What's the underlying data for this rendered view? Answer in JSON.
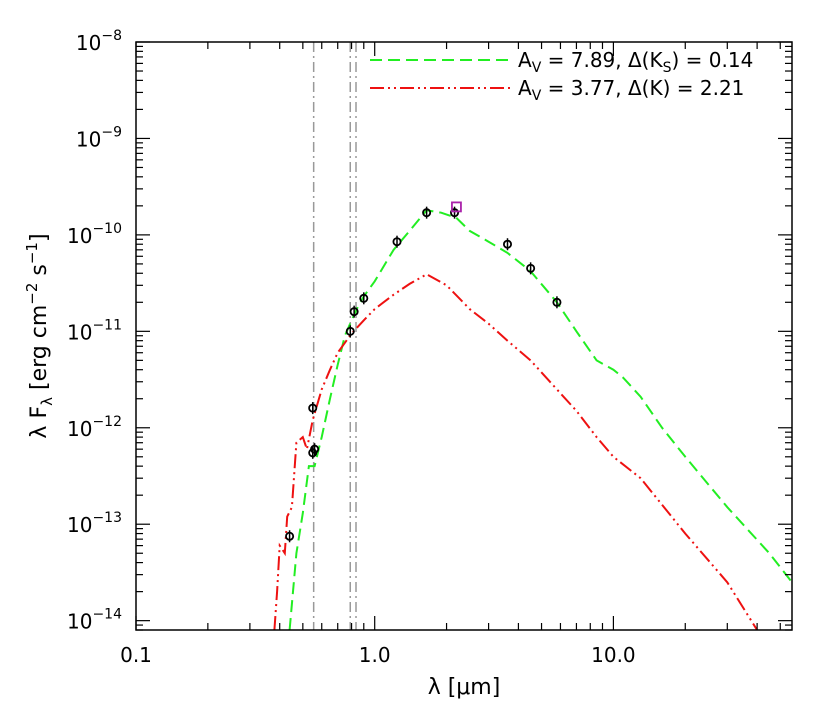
{
  "chart_data": {
    "type": "line",
    "title": "",
    "xlabel": "λ [μm]",
    "ylabel": "λ F_λ [erg cm^-2 s^-1]",
    "x_scale": "log",
    "y_scale": "log",
    "xlim": [
      0.1,
      56
    ],
    "ylim": [
      8e-15,
      1e-08
    ],
    "x_ticks": [
      {
        "value": 0.1,
        "label": "0.1"
      },
      {
        "value": 1.0,
        "label": "1.0"
      },
      {
        "value": 10.0,
        "label": "10.0"
      }
    ],
    "y_ticks": [
      {
        "value": 1e-08,
        "label": "10^-8"
      },
      {
        "value": 1e-09,
        "label": "10^-9"
      },
      {
        "value": 1e-10,
        "label": "10^-10"
      },
      {
        "value": 1e-11,
        "label": "10^-11"
      },
      {
        "value": 1e-12,
        "label": "10^-12"
      },
      {
        "value": 1e-13,
        "label": "10^-13"
      },
      {
        "value": 1e-14,
        "label": "10^-14"
      }
    ],
    "legend_position": "top-right",
    "series": [
      {
        "name": "A_V = 7.89, Δ(K_S) = 0.14",
        "style": "dashed",
        "color": "#22ee22",
        "points": [
          [
            0.44,
            8e-15
          ],
          [
            0.47,
            5e-14
          ],
          [
            0.5,
            1.3e-13
          ],
          [
            0.53,
            4e-13
          ],
          [
            0.56,
            4e-13
          ],
          [
            0.6,
            8e-13
          ],
          [
            0.65,
            2e-12
          ],
          [
            0.7,
            4.5e-12
          ],
          [
            0.75,
            9e-12
          ],
          [
            0.8,
            1.3e-11
          ],
          [
            0.85,
            1.8e-11
          ],
          [
            0.9,
            2.3e-11
          ],
          [
            1.0,
            3.3e-11
          ],
          [
            1.2,
            7e-11
          ],
          [
            1.4,
            1.1e-10
          ],
          [
            1.65,
            1.8e-10
          ],
          [
            1.9,
            1.7e-10
          ],
          [
            2.2,
            1.5e-10
          ],
          [
            2.5,
            1.1e-10
          ],
          [
            3.0,
            8.5e-11
          ],
          [
            3.6,
            6.5e-11
          ],
          [
            4.5,
            4.2e-11
          ],
          [
            5.8,
            2e-11
          ],
          [
            7.0,
            1e-11
          ],
          [
            8.5,
            5e-12
          ],
          [
            10.0,
            4e-12
          ],
          [
            11.0,
            3.3e-12
          ],
          [
            13.0,
            2.1e-12
          ],
          [
            16.0,
            1e-12
          ],
          [
            20.0,
            5e-13
          ],
          [
            30.0,
            1.5e-13
          ],
          [
            45.0,
            5e-14
          ],
          [
            56.0,
            2.5e-14
          ]
        ]
      },
      {
        "name": "A_V = 3.77, Δ(K) = 2.21",
        "style": "dash-dot-dot",
        "color": "#ee1111",
        "points": [
          [
            0.38,
            8e-15
          ],
          [
            0.39,
            2e-14
          ],
          [
            0.4,
            6e-14
          ],
          [
            0.42,
            5e-14
          ],
          [
            0.43,
            1.2e-13
          ],
          [
            0.45,
            1.5e-13
          ],
          [
            0.47,
            7e-13
          ],
          [
            0.5,
            8e-13
          ],
          [
            0.52,
            6e-13
          ],
          [
            0.55,
            1.2e-12
          ],
          [
            0.6,
            2.5e-12
          ],
          [
            0.65,
            4e-12
          ],
          [
            0.7,
            6e-12
          ],
          [
            0.8,
            9.5e-12
          ],
          [
            0.9,
            1.3e-11
          ],
          [
            1.0,
            1.7e-11
          ],
          [
            1.2,
            2.4e-11
          ],
          [
            1.4,
            3.1e-11
          ],
          [
            1.65,
            3.9e-11
          ],
          [
            2.0,
            3e-11
          ],
          [
            2.5,
            1.7e-11
          ],
          [
            3.0,
            1.2e-11
          ],
          [
            3.6,
            8e-12
          ],
          [
            4.5,
            5e-12
          ],
          [
            5.8,
            2.5e-12
          ],
          [
            7.0,
            1.5e-12
          ],
          [
            8.5,
            8e-13
          ],
          [
            10.0,
            5e-13
          ],
          [
            13.0,
            3e-13
          ],
          [
            20.0,
            8e-14
          ],
          [
            30.0,
            2.5e-14
          ],
          [
            40.0,
            8e-15
          ]
        ]
      }
    ],
    "observations": {
      "color": "#000000",
      "points": [
        [
          0.44,
          7.5e-14
        ],
        [
          0.55,
          5.5e-13
        ],
        [
          0.56,
          6e-13
        ],
        [
          0.55,
          1.6e-12
        ],
        [
          0.79,
          1e-11
        ],
        [
          0.82,
          1.6e-11
        ],
        [
          0.9,
          2.2e-11
        ],
        [
          1.24,
          8.5e-11
        ],
        [
          1.65,
          1.7e-10
        ],
        [
          2.16,
          1.7e-10
        ],
        [
          3.6,
          8e-11
        ],
        [
          4.5,
          4.5e-11
        ],
        [
          5.8,
          2e-11
        ]
      ]
    },
    "square_marker": {
      "x": 2.2,
      "y": 1.95e-10,
      "color": "#aa22aa"
    },
    "vertical_lines": [
      {
        "x": 0.555,
        "color": "#999999"
      },
      {
        "x": 0.79,
        "color": "#999999"
      },
      {
        "x": 0.835,
        "color": "#999999"
      }
    ]
  }
}
